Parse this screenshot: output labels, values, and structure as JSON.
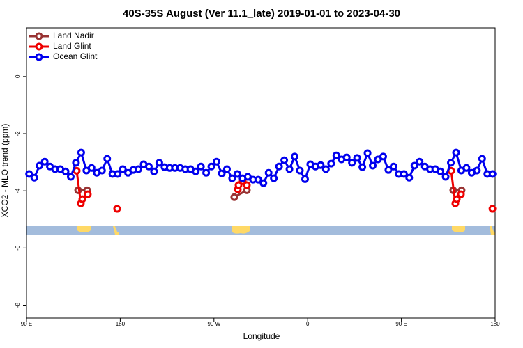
{
  "chart_data": {
    "type": "line",
    "title": "40S-35S August (Ver 11.1_late)   2019-01-01 to 2023-04-30",
    "x_label": "Longitude",
    "y_label": "XCO2 - MLO trend (ppm)",
    "xlim": [
      90,
      540
    ],
    "ylim": [
      -8.45,
      1.7
    ],
    "xticks": [
      {
        "value": 90,
        "label": "90 E"
      },
      {
        "value": 180,
        "label": "180"
      },
      {
        "value": 270,
        "label": "90 W"
      },
      {
        "value": 360,
        "label": "0"
      },
      {
        "value": 450,
        "label": "90 E"
      },
      {
        "value": 540,
        "label": "180"
      }
    ],
    "yticks": [
      0,
      -2,
      -4,
      -6,
      -8
    ],
    "legend": "top-left",
    "series": [
      {
        "name": "Land Nadir",
        "color": "#993333",
        "x": [
          139.6,
          148.3,
          null,
          289.5,
          301.6,
          null,
          499.8,
          507.8
        ],
        "values": [
          -3.98,
          -3.98,
          null,
          -4.22,
          -3.98,
          null,
          -3.98,
          -3.98
        ]
      },
      {
        "name": "Land Glint",
        "color": "#ee0000",
        "x": [
          138.2,
          142.2,
          143.6,
          148.9,
          null,
          177.0,
          null,
          292.9,
          293.6,
          297.6,
          301.6,
          null,
          497.8,
          501.8,
          503.2,
          507.2,
          null,
          537.4
        ],
        "values": [
          -3.3,
          -4.44,
          -4.29,
          -4.12,
          null,
          -4.63,
          null,
          -3.95,
          -3.8,
          -3.66,
          -3.8,
          null,
          -3.3,
          -4.44,
          -4.29,
          -4.12,
          null,
          -4.63
        ]
      },
      {
        "name": "Ocean Glint",
        "color": "#0000ee",
        "x": [
          92.5,
          97.5,
          102.5,
          107.5,
          112.5,
          117.5,
          122.5,
          127.5,
          132.5,
          137.5,
          142.5,
          147.5,
          152.5,
          157.5,
          162.5,
          167.5,
          172.5,
          177.5,
          182.5,
          187.5,
          192.5,
          197.5,
          202.5,
          207.5,
          212.5,
          217.5,
          222.5,
          227.5,
          232.5,
          237.5,
          242.5,
          247.5,
          252.5,
          257.5,
          262.5,
          267.5,
          272.5,
          277.5,
          282.5,
          287.5,
          292.5,
          297.5,
          302.5,
          307.5,
          312.5,
          317.5,
          322.5,
          327.5,
          332.5,
          337.5,
          342.5,
          347.5,
          352.5,
          357.5,
          362.5,
          367.5,
          372.5,
          377.5,
          382.5,
          387.5,
          392.5,
          397.5,
          402.5,
          407.5,
          412.5,
          417.5,
          422.5,
          427.5,
          432.5,
          437.5,
          442.5,
          447.5,
          452.5,
          457.5,
          462.5,
          467.5,
          472.5,
          477.5,
          482.5,
          487.5,
          492.5,
          497.5,
          502.5,
          507.5,
          512.5,
          517.5,
          522.5,
          527.5,
          532.5,
          537.5
        ],
        "values": [
          -3.41,
          -3.54,
          -3.12,
          -2.98,
          -3.15,
          -3.24,
          -3.24,
          -3.32,
          -3.51,
          -3.02,
          -2.66,
          -3.29,
          -3.2,
          -3.37,
          -3.29,
          -2.88,
          -3.41,
          -3.41,
          -3.24,
          -3.37,
          -3.27,
          -3.24,
          -3.07,
          -3.15,
          -3.32,
          -3.02,
          -3.17,
          -3.2,
          -3.2,
          -3.2,
          -3.24,
          -3.24,
          -3.32,
          -3.15,
          -3.37,
          -3.15,
          -2.98,
          -3.39,
          -3.24,
          -3.56,
          -3.41,
          -3.56,
          -3.51,
          -3.61,
          -3.61,
          -3.73,
          -3.37,
          -3.56,
          -3.15,
          -2.93,
          -3.24,
          -2.8,
          -3.29,
          -3.59,
          -3.07,
          -3.15,
          -3.1,
          -3.24,
          -3.05,
          -2.76,
          -2.9,
          -2.83,
          -3.02,
          -2.85,
          -3.17,
          -2.68,
          -3.12,
          -2.9,
          -2.8,
          -3.27,
          -3.15,
          -3.41,
          -3.41,
          -3.54,
          -3.12,
          -2.98,
          -3.15,
          -3.24,
          -3.24,
          -3.32,
          -3.51,
          -3.02,
          -2.66,
          -3.29,
          -3.2,
          -3.37,
          -3.29,
          -2.88,
          -3.41,
          -3.41
        ]
      }
    ]
  }
}
